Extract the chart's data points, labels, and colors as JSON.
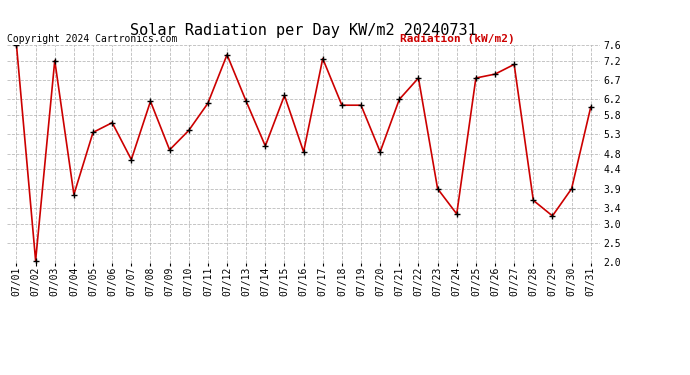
{
  "title": "Solar Radiation per Day KW/m2 20240731",
  "copyright": "Copyright 2024 Cartronics.com",
  "legend_label": "Radiation (kW/m2)",
  "dates": [
    "07/01",
    "07/02",
    "07/03",
    "07/04",
    "07/05",
    "07/06",
    "07/07",
    "07/08",
    "07/09",
    "07/10",
    "07/11",
    "07/12",
    "07/13",
    "07/14",
    "07/15",
    "07/16",
    "07/17",
    "07/18",
    "07/19",
    "07/20",
    "07/21",
    "07/22",
    "07/23",
    "07/24",
    "07/25",
    "07/26",
    "07/27",
    "07/28",
    "07/29",
    "07/30",
    "07/31"
  ],
  "values": [
    7.6,
    2.05,
    7.2,
    3.75,
    5.35,
    5.6,
    4.65,
    6.15,
    4.9,
    5.4,
    6.1,
    7.35,
    6.15,
    5.0,
    6.3,
    4.85,
    7.25,
    6.05,
    6.05,
    4.85,
    6.2,
    6.75,
    3.9,
    3.25,
    6.75,
    6.85,
    7.1,
    3.6,
    3.2,
    3.9,
    6.0
  ],
  "line_color": "#cc0000",
  "marker_color": "#000000",
  "grid_color": "#aaaaaa",
  "bg_color": "#ffffff",
  "title_color": "#000000",
  "copyright_color": "#000000",
  "legend_color": "#cc0000",
  "ylim": [
    2.0,
    7.6
  ],
  "yticks": [
    2.0,
    2.5,
    3.0,
    3.4,
    3.9,
    4.4,
    4.8,
    5.3,
    5.8,
    6.2,
    6.7,
    7.2,
    7.6
  ],
  "title_fontsize": 11,
  "tick_fontsize": 7,
  "copyright_fontsize": 7,
  "legend_fontsize": 8,
  "marker_size": 5,
  "line_width": 1.2
}
